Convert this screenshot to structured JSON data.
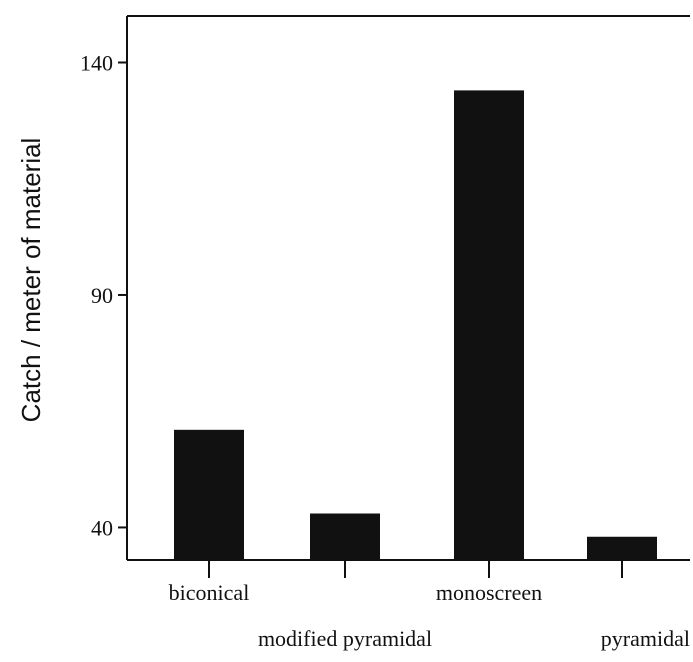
{
  "chart_data": {
    "type": "bar",
    "title": "",
    "xlabel": "",
    "ylabel": "Catch  / meter of material",
    "categories": [
      "biconical",
      "modified pyramidal",
      "monoscreen",
      "pyramidal"
    ],
    "values": [
      61,
      43,
      134,
      38
    ],
    "ylim": [
      33,
      150
    ],
    "yticks": [
      40,
      90,
      140
    ],
    "grid": false,
    "legend": "none",
    "bar_color": "#111111"
  }
}
